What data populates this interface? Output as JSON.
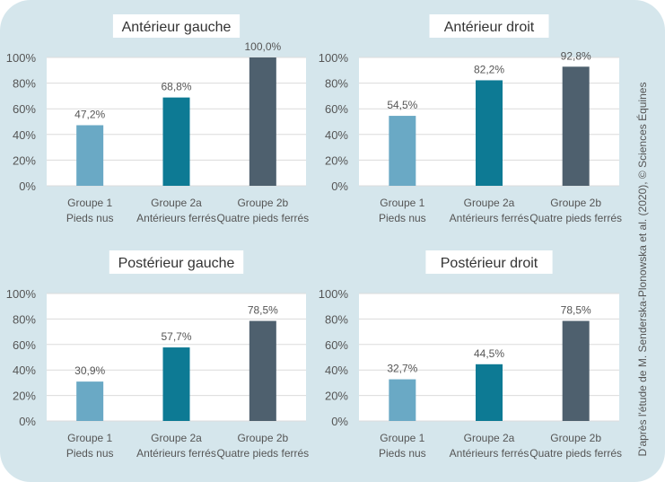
{
  "chart_data": [
    {
      "type": "bar",
      "title": "Antérieur gauche",
      "categories": [
        [
          "Groupe 1",
          "Pieds nus"
        ],
        [
          "Groupe 2a",
          "Antérieurs ferrés"
        ],
        [
          "Groupe 2b",
          "Quatre pieds ferrés"
        ]
      ],
      "values": [
        47.2,
        68.8,
        100.0
      ],
      "labels": [
        "47,2%",
        "68,8%",
        "100,0%"
      ],
      "ylim": [
        0,
        100
      ],
      "yticks": [
        "0%",
        "20%",
        "40%",
        "60%",
        "80%",
        "100%"
      ],
      "grid": true
    },
    {
      "type": "bar",
      "title": "Antérieur droit",
      "categories": [
        [
          "Groupe 1",
          "Pieds nus"
        ],
        [
          "Groupe 2a",
          "Antérieurs ferrés"
        ],
        [
          "Groupe 2b",
          "Quatre pieds ferrés"
        ]
      ],
      "values": [
        54.5,
        82.2,
        92.8
      ],
      "labels": [
        "54,5%",
        "82,2%",
        "92,8%"
      ],
      "ylim": [
        0,
        100
      ],
      "yticks": [
        "0%",
        "20%",
        "40%",
        "60%",
        "80%",
        "100%"
      ],
      "grid": true
    },
    {
      "type": "bar",
      "title": "Postérieur gauche",
      "categories": [
        [
          "Groupe 1",
          "Pieds nus"
        ],
        [
          "Groupe 2a",
          "Antérieurs ferrés"
        ],
        [
          "Groupe 2b",
          "Quatre pieds ferrés"
        ]
      ],
      "values": [
        30.9,
        57.7,
        78.5
      ],
      "labels": [
        "30,9%",
        "57,7%",
        "78,5%"
      ],
      "ylim": [
        0,
        100
      ],
      "yticks": [
        "0%",
        "20%",
        "40%",
        "60%",
        "80%",
        "100%"
      ],
      "grid": true
    },
    {
      "type": "bar",
      "title": "Postérieur droit",
      "categories": [
        [
          "Groupe 1",
          "Pieds nus"
        ],
        [
          "Groupe 2a",
          "Antérieurs ferrés"
        ],
        [
          "Groupe 2b",
          "Quatre pieds ferrés"
        ]
      ],
      "values": [
        32.7,
        44.5,
        78.5
      ],
      "labels": [
        "32,7%",
        "44,5%",
        "78,5%"
      ],
      "ylim": [
        0,
        100
      ],
      "yticks": [
        "0%",
        "20%",
        "40%",
        "60%",
        "80%",
        "100%"
      ],
      "grid": true
    }
  ],
  "colors": [
    "#6aa9c5",
    "#0d7a94",
    "#4e606e"
  ],
  "background": "#d5e6ec",
  "credit": "D'après l'étude de M. Senderska-Plonowska et al. (2020), © Sciences Équines"
}
